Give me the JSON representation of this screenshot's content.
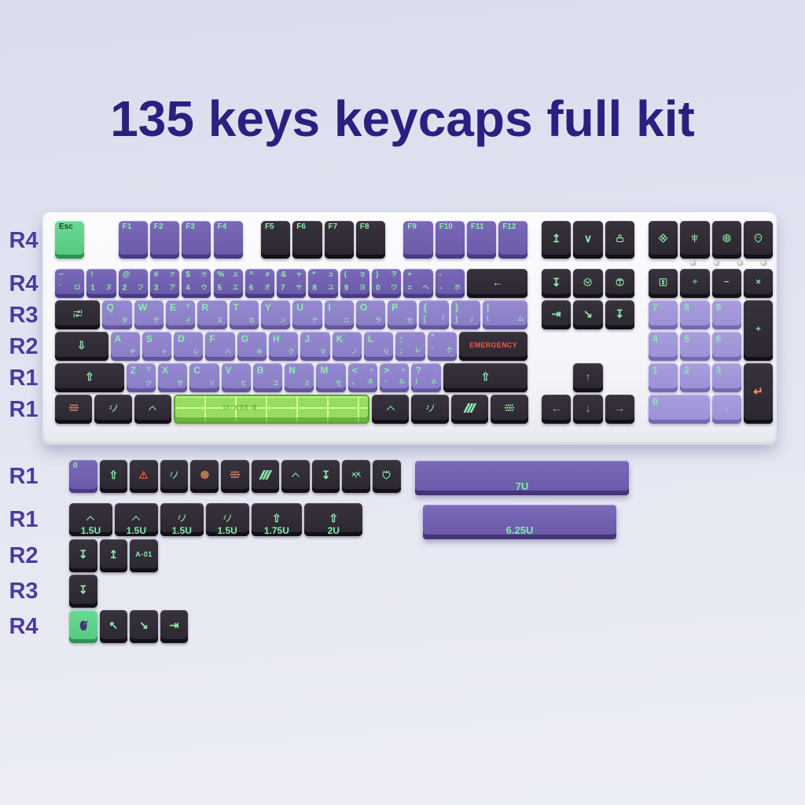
{
  "title": "135 keys keycaps full kit",
  "colors": {
    "title": "#2b2080",
    "row_label": "#4c3aa0",
    "legend_green": "#8cecac",
    "legend_orange": "#f49a66",
    "emergency_red": "#ef5b43",
    "key_purple": "#6f5cae",
    "key_alpha_purple": "#8b7dc9",
    "key_light_purple": "#9d92d6",
    "key_black": "#2e2931",
    "key_green": "#5dd188",
    "spacebar_green": "#86d848",
    "case_white": "#fafafc"
  },
  "keyboard": {
    "leds": 4,
    "rows": [
      {
        "label": "R4",
        "main": [
          {
            "n": "key-esc",
            "c": "g",
            "tl": "Esc",
            "fc": "d"
          },
          {
            "n": "key-f1",
            "c": "p",
            "g": 1,
            "tl": "F1"
          },
          {
            "n": "key-f2",
            "c": "p",
            "tl": "F2"
          },
          {
            "n": "key-f3",
            "c": "p",
            "tl": "F3"
          },
          {
            "n": "key-f4",
            "c": "p",
            "tl": "F4"
          },
          {
            "n": "key-f5",
            "c": "k",
            "g": 0.5,
            "tl": "F5"
          },
          {
            "n": "key-f6",
            "c": "k",
            "tl": "F6"
          },
          {
            "n": "key-f7",
            "c": "k",
            "tl": "F7"
          },
          {
            "n": "key-f8",
            "c": "k",
            "tl": "F8"
          },
          {
            "n": "key-f9",
            "c": "p",
            "g": 0.5,
            "tl": "F9"
          },
          {
            "n": "key-f10",
            "c": "p",
            "tl": "F10"
          },
          {
            "n": "key-f11",
            "c": "p",
            "tl": "F11"
          },
          {
            "n": "key-f12",
            "c": "p",
            "tl": "F12"
          }
        ],
        "nav": [
          {
            "n": "key-print-screen",
            "c": "k",
            "ico": "up-bar-icon"
          },
          {
            "n": "key-scroll-lock",
            "c": "k",
            "ico": "chevron-down-icon"
          },
          {
            "n": "key-pause",
            "c": "k",
            "ico": "stamp-icon"
          }
        ],
        "num": [
          {
            "n": "key-media-diamond",
            "c": "k",
            "ico": "diamond-icon"
          },
          {
            "n": "key-media-scale",
            "c": "k",
            "ico": "scale-icon"
          },
          {
            "n": "key-media-brain",
            "c": "k",
            "ico": "brain-icon"
          },
          {
            "n": "key-media-alien",
            "c": "k",
            "ico": "alien-icon"
          }
        ]
      },
      {
        "label": "R4",
        "main": [
          {
            "n": "key-grave",
            "c": "p",
            "tl": "~",
            "bl": "`",
            "br": "ロ"
          },
          {
            "n": "key-1",
            "c": "p",
            "tl": "!",
            "bl": "1",
            "br": "ヌ"
          },
          {
            "n": "key-2",
            "c": "p",
            "tl": "@",
            "bl": "2",
            "br": "フ"
          },
          {
            "n": "key-3",
            "c": "p",
            "tl": "#",
            "tr": "ァ",
            "bl": "3",
            "br": "ア"
          },
          {
            "n": "key-4",
            "c": "p",
            "tl": "$",
            "tr": "ゥ",
            "bl": "4",
            "br": "ウ"
          },
          {
            "n": "key-5",
            "c": "p",
            "tl": "%",
            "tr": "ェ",
            "bl": "5",
            "br": "エ"
          },
          {
            "n": "key-6",
            "c": "p",
            "tl": "^",
            "tr": "ォ",
            "bl": "6",
            "br": "オ"
          },
          {
            "n": "key-7",
            "c": "p",
            "tl": "&",
            "tr": "ャ",
            "bl": "7",
            "br": "ヤ"
          },
          {
            "n": "key-8",
            "c": "p",
            "tl": "*",
            "tr": "ュ",
            "bl": "8",
            "br": "ユ"
          },
          {
            "n": "key-9",
            "c": "p",
            "tl": "(",
            "tr": "ョ",
            "bl": "9",
            "br": "ヨ"
          },
          {
            "n": "key-0",
            "c": "p",
            "tl": ")",
            "tr": "ヲ",
            "bl": "0",
            "br": "ワ"
          },
          {
            "n": "key-equals",
            "c": "p",
            "tl": "+",
            "bl": "=",
            "br": "ヘ"
          },
          {
            "n": "key-minus",
            "c": "p",
            "tl": "-",
            "bl": "-",
            "br": "ホ"
          },
          {
            "n": "key-backspace",
            "c": "k",
            "w": 2,
            "ico": "backspace-icon"
          }
        ],
        "nav": [
          {
            "n": "key-insert",
            "c": "k",
            "ico": "down-bar-icon"
          },
          {
            "n": "key-home",
            "c": "k",
            "ico": "circle-alien-icon"
          },
          {
            "n": "key-pgup",
            "c": "k",
            "ico": "circle-cross-icon"
          }
        ],
        "num": [
          {
            "n": "key-numlock",
            "c": "k",
            "ico": "numlock-icon"
          },
          {
            "n": "key-numpad-divide",
            "c": "k",
            "ct": "÷"
          },
          {
            "n": "key-numpad-minus",
            "c": "k",
            "ct": "−"
          },
          {
            "n": "key-numpad-times",
            "c": "k",
            "ct": "×"
          }
        ]
      },
      {
        "label": "R3",
        "main": [
          {
            "n": "key-tab",
            "c": "k",
            "w": 1.5,
            "ico": "tab-icon"
          },
          {
            "n": "key-q",
            "c": "a",
            "tl": "Q",
            "br": "タ"
          },
          {
            "n": "key-w",
            "c": "a",
            "tl": "W",
            "br": "テ"
          },
          {
            "n": "key-e",
            "c": "a",
            "tl": "E",
            "tr": "ィ",
            "br": "イ"
          },
          {
            "n": "key-r",
            "c": "a",
            "tl": "R",
            "br": "ス"
          },
          {
            "n": "key-t",
            "c": "a",
            "tl": "T",
            "br": "カ"
          },
          {
            "n": "key-y",
            "c": "a",
            "tl": "Y",
            "br": "ン"
          },
          {
            "n": "key-u",
            "c": "a",
            "tl": "U",
            "br": "ナ"
          },
          {
            "n": "key-i",
            "c": "a",
            "tl": "I",
            "br": "ニ"
          },
          {
            "n": "key-o",
            "c": "a",
            "tl": "O",
            "br": "ラ"
          },
          {
            "n": "key-p",
            "c": "a",
            "tl": "P",
            "br": "セ"
          },
          {
            "n": "key-lbracket",
            "c": "a",
            "tl": "{",
            "bl": "[",
            "br": "「"
          },
          {
            "n": "key-rbracket",
            "c": "a",
            "tl": "}",
            "bl": "]",
            "br": "」"
          },
          {
            "n": "key-backslash",
            "c": "a",
            "w": 1.5,
            "tl": "|",
            "bl": "\\",
            "br": "ム"
          }
        ],
        "nav": [
          {
            "n": "key-delete",
            "c": "k",
            "ico": "tab-right-icon"
          },
          {
            "n": "key-end",
            "c": "k",
            "ico": "arrow-downright-icon"
          },
          {
            "n": "key-pgdn",
            "c": "k",
            "ico": "down-bar-icon"
          }
        ],
        "num": [
          {
            "n": "key-numpad-7",
            "c": "l",
            "tl": "7"
          },
          {
            "n": "key-numpad-8",
            "c": "l",
            "tl": "8"
          },
          {
            "n": "key-numpad-9",
            "c": "l",
            "tl": "9"
          },
          {
            "n": "key-numpad-plus",
            "c": "k",
            "ct": "+",
            "tall": true
          }
        ]
      },
      {
        "label": "R2",
        "main": [
          {
            "n": "key-capslock",
            "c": "k",
            "w": 1.75,
            "ico": "caps-icon"
          },
          {
            "n": "key-a",
            "c": "a",
            "tl": "A",
            "br": "チ"
          },
          {
            "n": "key-s",
            "c": "a",
            "tl": "S",
            "br": "ト"
          },
          {
            "n": "key-d",
            "c": "a",
            "tl": "D",
            "br": "シ"
          },
          {
            "n": "key-f",
            "c": "a",
            "tl": "F",
            "br": "ハ"
          },
          {
            "n": "key-g",
            "c": "a",
            "tl": "G",
            "br": "キ"
          },
          {
            "n": "key-h",
            "c": "a",
            "tl": "H",
            "br": "ク"
          },
          {
            "n": "key-j",
            "c": "a",
            "tl": "J",
            "br": "マ"
          },
          {
            "n": "key-k",
            "c": "a",
            "tl": "K",
            "br": "ノ"
          },
          {
            "n": "key-l",
            "c": "a",
            "tl": "L",
            "br": "リ"
          },
          {
            "n": "key-semicolon",
            "c": "a",
            "tl": ":",
            "bl": ";",
            "br": "レ"
          },
          {
            "n": "key-quote",
            "c": "a",
            "tl": "゛",
            "bl": "'",
            "br": "ケ"
          },
          {
            "n": "key-enter-emergency",
            "c": "k",
            "w": 2.25,
            "ct": "EMERGENCY",
            "fc": "r"
          }
        ],
        "nav": [],
        "num": [
          {
            "n": "key-numpad-4",
            "c": "l",
            "tl": "4"
          },
          {
            "n": "key-numpad-5",
            "c": "l",
            "tl": "5"
          },
          {
            "n": "key-numpad-6",
            "c": "l",
            "tl": "6"
          }
        ]
      },
      {
        "label": "R1",
        "main": [
          {
            "n": "key-lshift",
            "c": "k",
            "w": 2.25,
            "ico": "shift-icon"
          },
          {
            "n": "key-z",
            "c": "a",
            "tl": "Z",
            "tr": "ッ",
            "br": "ツ"
          },
          {
            "n": "key-x",
            "c": "a",
            "tl": "X",
            "br": "サ"
          },
          {
            "n": "key-c",
            "c": "a",
            "tl": "C",
            "br": "ソ"
          },
          {
            "n": "key-v",
            "c": "a",
            "tl": "V",
            "br": "ヒ"
          },
          {
            "n": "key-b",
            "c": "a",
            "tl": "B",
            "br": "コ"
          },
          {
            "n": "key-n",
            "c": "a",
            "tl": "N",
            "br": "ミ"
          },
          {
            "n": "key-m",
            "c": "a",
            "tl": "M",
            "br": "モ"
          },
          {
            "n": "key-comma",
            "c": "a",
            "tl": "<",
            "tr": "｡",
            "bl": "､",
            "br": "ネ"
          },
          {
            "n": "key-period",
            "c": "a",
            "tl": ">",
            "tr": "｡",
            "bl": "･",
            "br": "ル"
          },
          {
            "n": "key-slash",
            "c": "a",
            "tl": "?",
            "tr": "･",
            "bl": "/",
            "br": "メ"
          },
          {
            "n": "key-rshift",
            "c": "k",
            "w": 2.75,
            "ico": "shift-icon"
          }
        ],
        "nav": [
          {
            "n": "key-arrow-up",
            "c": "k",
            "g": 1,
            "ico": "arrow-up-icon",
            "fc": "o"
          }
        ],
        "num": [
          {
            "n": "key-numpad-1",
            "c": "l",
            "tl": "1"
          },
          {
            "n": "key-numpad-2",
            "c": "l",
            "tl": "2"
          },
          {
            "n": "key-numpad-3",
            "c": "l",
            "tl": "3"
          },
          {
            "n": "key-numpad-enter",
            "c": "k",
            "ico": "enter-icon",
            "fc": "o",
            "tall": true
          }
        ]
      },
      {
        "label": "R1",
        "main": [
          {
            "n": "key-lctrl",
            "c": "k",
            "w": 1.25,
            "ico": "honeycomb-orange-icon",
            "fc": "o"
          },
          {
            "n": "key-lwin",
            "c": "k",
            "w": 1.25,
            "ico": "zigzag-icon"
          },
          {
            "n": "key-lalt",
            "c": "k",
            "w": 1.25,
            "ico": "caret-icon"
          },
          {
            "n": "key-space",
            "c": "s",
            "w": 6.25,
            "txt": "B·SEK-VI"
          },
          {
            "n": "key-ralt",
            "c": "k",
            "w": 1.25,
            "ico": "caret-icon"
          },
          {
            "n": "key-rwin",
            "c": "k",
            "w": 1.25,
            "ico": "zigzag-icon"
          },
          {
            "n": "key-fn",
            "c": "k",
            "w": 1.25,
            "ico": "stripes-icon"
          },
          {
            "n": "key-rctrl",
            "c": "k",
            "w": 1.25,
            "ico": "honeycomb-green-icon"
          }
        ],
        "nav": [
          {
            "n": "key-arrow-left",
            "c": "k",
            "ico": "arrow-left-icon",
            "fc": "o"
          },
          {
            "n": "key-arrow-down",
            "c": "k",
            "ico": "arrow-down-icon",
            "fc": "o"
          },
          {
            "n": "key-arrow-right",
            "c": "k",
            "ico": "arrow-right-icon",
            "fc": "o"
          }
        ],
        "num": [
          {
            "n": "key-numpad-0",
            "c": "l",
            "w": 2,
            "tl": "0"
          },
          {
            "n": "key-numpad-dot",
            "c": "l",
            "ct": "."
          }
        ]
      }
    ]
  },
  "lower": {
    "rows": [
      {
        "label": "R1",
        "keys": [
          {
            "n": "key-extra-0",
            "c": "p",
            "tl": "0"
          },
          {
            "n": "key-extra-shift",
            "c": "k",
            "ico": "shift-icon"
          },
          {
            "n": "key-extra-warning",
            "c": "k",
            "ico": "warning-icon",
            "fc": "r"
          },
          {
            "n": "key-extra-zigzag",
            "c": "k",
            "ico": "zigzag-icon"
          },
          {
            "n": "key-extra-target",
            "c": "k",
            "ico": "target-icon",
            "fc": "o"
          },
          {
            "n": "key-extra-honeycomb",
            "c": "k",
            "ico": "honeycomb-orange-icon",
            "fc": "o"
          },
          {
            "n": "key-extra-stripes",
            "c": "k",
            "ico": "stripes-icon"
          },
          {
            "n": "key-extra-caret",
            "c": "k",
            "ico": "caret-icon"
          },
          {
            "n": "key-extra-down",
            "c": "k",
            "ico": "down-bar-icon"
          },
          {
            "n": "key-extra-picks",
            "c": "k",
            "ico": "picks-icon"
          },
          {
            "n": "key-extra-core",
            "c": "k",
            "ico": "core-icon"
          }
        ]
      },
      {
        "label": "R1",
        "keys": [
          {
            "n": "key-size-150a",
            "c": "k",
            "w": 1.5,
            "ico": "caret-icon",
            "lbl": "1.5U"
          },
          {
            "n": "key-size-150b",
            "c": "k",
            "w": 1.5,
            "ico": "caret-icon",
            "lbl": "1.5U"
          },
          {
            "n": "key-size-150c",
            "c": "k",
            "w": 1.5,
            "ico": "zigzag-icon",
            "lbl": "1.5U"
          },
          {
            "n": "key-size-150d",
            "c": "k",
            "w": 1.5,
            "ico": "zigzag-icon",
            "lbl": "1.5U"
          },
          {
            "n": "key-size-175",
            "c": "k",
            "w": 1.75,
            "ico": "shift-icon",
            "lbl": "1.75U"
          },
          {
            "n": "key-size-200",
            "c": "k",
            "w": 2,
            "ico": "shift-icon",
            "lbl": "2U"
          }
        ]
      },
      {
        "label": "R2",
        "keys": [
          {
            "n": "key-extra-down2",
            "c": "k",
            "ico": "down-bar-icon"
          },
          {
            "n": "key-extra-up2",
            "c": "k",
            "ico": "up-bar-icon"
          },
          {
            "n": "key-extra-a01",
            "c": "k",
            "ct": "A-01"
          }
        ]
      },
      {
        "label": "R3",
        "keys": [
          {
            "n": "key-extra-down3",
            "c": "k",
            "ico": "down-bar-icon"
          }
        ]
      },
      {
        "label": "R4",
        "keys": [
          {
            "n": "key-extra-eva",
            "c": "g",
            "ico": "eva-head-icon"
          },
          {
            "n": "key-extra-upleft",
            "c": "k",
            "ico": "arrow-upleft-icon"
          },
          {
            "n": "key-extra-downright",
            "c": "k",
            "ico": "arrow-downright-icon"
          },
          {
            "n": "key-extra-tabright",
            "c": "k",
            "ico": "tab-right-icon"
          }
        ]
      }
    ],
    "bars": [
      {
        "n": "spacebar-7u",
        "label": "7U"
      },
      {
        "n": "spacebar-625u",
        "label": "6.25U"
      }
    ]
  }
}
